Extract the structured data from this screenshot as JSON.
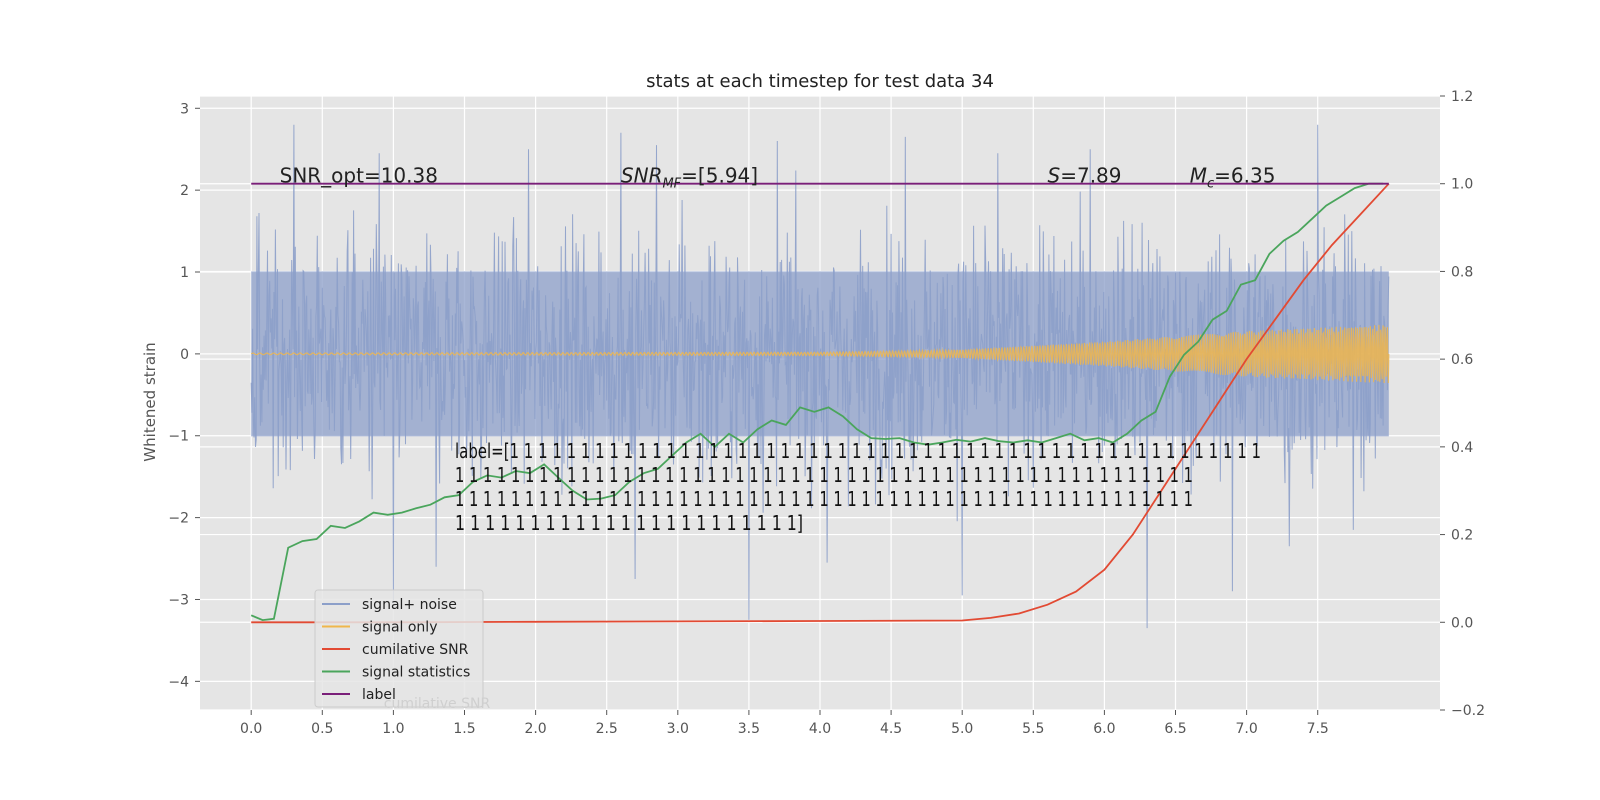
{
  "chart_data": {
    "type": "line",
    "title": "stats at each timestep for test data 34",
    "ylabel": "Whitened strain",
    "y2label": "",
    "xlim": [
      -0.36,
      8.36
    ],
    "ylim": [
      -4.35,
      3.15
    ],
    "y2lim": [
      -0.2,
      1.2
    ],
    "x_ticks": [
      0.0,
      0.5,
      1.0,
      1.5,
      2.0,
      2.5,
      3.0,
      3.5,
      4.0,
      4.5,
      5.0,
      5.5,
      6.0,
      6.5,
      7.0,
      7.5
    ],
    "x_tick_labels": [
      "0.0",
      "0.5",
      "1.0",
      "1.5",
      "2.0",
      "2.5",
      "3.0",
      "3.5",
      "4.0",
      "4.5",
      "5.0",
      "5.5",
      "6.0",
      "6.5",
      "7.0",
      "7.5"
    ],
    "y_ticks": [
      3,
      2,
      1,
      0,
      -1,
      -2,
      -3,
      -4
    ],
    "y_tick_labels": [
      "3",
      "2",
      "1",
      "0",
      "−1",
      "−2",
      "−3",
      "−4"
    ],
    "y2_ticks": [
      1.2,
      1.0,
      0.8,
      0.6,
      0.4,
      0.2,
      0.0,
      -0.2
    ],
    "y2_tick_labels": [
      "1.2",
      "1.0",
      "0.8",
      "0.6",
      "0.4",
      "0.2",
      "0.0",
      "−0.2"
    ],
    "grid": true,
    "legend_position": "lower-left",
    "series": [
      {
        "name": "signal+ noise",
        "axis": "left",
        "color": "#8c9fc9",
        "style": "noise band",
        "x_range": [
          0.0,
          8.0
        ],
        "typical_range": [
          -1.55,
          1.55
        ],
        "extreme_range": [
          -3.35,
          2.8
        ],
        "peaks": [
          [
            0.3,
            2.8
          ],
          [
            1.0,
            -3.05
          ],
          [
            2.6,
            2.7
          ],
          [
            3.5,
            -3.25
          ],
          [
            4.6,
            2.65
          ],
          [
            5.0,
            -2.95
          ],
          [
            6.3,
            -3.35
          ],
          [
            7.5,
            2.8
          ],
          [
            0.9,
            2.45
          ],
          [
            1.95,
            2.5
          ],
          [
            2.85,
            2.55
          ],
          [
            3.7,
            2.6
          ],
          [
            4.05,
            -2.55
          ],
          [
            5.25,
            2.45
          ],
          [
            5.9,
            2.5
          ],
          [
            6.9,
            -2.9
          ],
          [
            7.3,
            -2.35
          ],
          [
            7.75,
            -2.15
          ],
          [
            1.3,
            -2.6
          ],
          [
            2.7,
            -2.75
          ]
        ]
      },
      {
        "name": "signal only",
        "axis": "left",
        "color": "#f0b64c",
        "style": "chirp",
        "x_range": [
          0.0,
          8.0
        ],
        "amplitude": [
          [
            0.0,
            0.01
          ],
          [
            4.0,
            0.02
          ],
          [
            5.0,
            0.05
          ],
          [
            6.0,
            0.15
          ],
          [
            7.0,
            0.28
          ],
          [
            8.0,
            0.36
          ]
        ]
      },
      {
        "name": "cumilative SNR",
        "axis": "right",
        "color": "#e24a33",
        "x": [
          0.0,
          0.5,
          1.0,
          2.0,
          3.0,
          4.0,
          5.0,
          5.2,
          5.4,
          5.6,
          5.8,
          6.0,
          6.2,
          6.4,
          6.6,
          6.8,
          7.0,
          7.2,
          7.4,
          7.6,
          7.8,
          8.0
        ],
        "y": [
          0.0,
          0.0,
          0.0,
          0.001,
          0.002,
          0.003,
          0.004,
          0.01,
          0.02,
          0.04,
          0.07,
          0.12,
          0.2,
          0.3,
          0.4,
          0.5,
          0.6,
          0.69,
          0.78,
          0.86,
          0.93,
          1.0
        ]
      },
      {
        "name": "signal statistics",
        "axis": "right",
        "color": "#4aa55c",
        "x": [
          0.0,
          0.08,
          0.16,
          0.26,
          0.36,
          0.46,
          0.56,
          0.66,
          0.76,
          0.86,
          0.96,
          1.06,
          1.16,
          1.26,
          1.36,
          1.46,
          1.56,
          1.66,
          1.76,
          1.86,
          1.96,
          2.06,
          2.16,
          2.26,
          2.36,
          2.46,
          2.56,
          2.66,
          2.76,
          2.86,
          2.96,
          3.06,
          3.16,
          3.26,
          3.36,
          3.46,
          3.56,
          3.66,
          3.76,
          3.86,
          3.96,
          4.06,
          4.16,
          4.26,
          4.36,
          4.46,
          4.56,
          4.66,
          4.76,
          4.86,
          4.96,
          5.06,
          5.16,
          5.26,
          5.36,
          5.46,
          5.56,
          5.66,
          5.76,
          5.86,
          5.96,
          6.06,
          6.16,
          6.26,
          6.36,
          6.46,
          6.56,
          6.66,
          6.76,
          6.86,
          6.96,
          7.06,
          7.16,
          7.26,
          7.36,
          7.46,
          7.56,
          7.66,
          7.76,
          7.86,
          7.96
        ],
        "y": [
          0.016,
          0.005,
          0.008,
          0.17,
          0.185,
          0.19,
          0.22,
          0.215,
          0.23,
          0.25,
          0.245,
          0.25,
          0.26,
          0.268,
          0.285,
          0.29,
          0.32,
          0.335,
          0.33,
          0.345,
          0.34,
          0.36,
          0.33,
          0.3,
          0.28,
          0.282,
          0.29,
          0.32,
          0.34,
          0.35,
          0.38,
          0.41,
          0.43,
          0.4,
          0.43,
          0.41,
          0.44,
          0.46,
          0.45,
          0.49,
          0.48,
          0.49,
          0.47,
          0.44,
          0.42,
          0.418,
          0.42,
          0.41,
          0.405,
          0.41,
          0.416,
          0.412,
          0.42,
          0.413,
          0.41,
          0.415,
          0.41,
          0.42,
          0.43,
          0.415,
          0.42,
          0.41,
          0.43,
          0.46,
          0.48,
          0.56,
          0.61,
          0.64,
          0.69,
          0.71,
          0.77,
          0.78,
          0.84,
          0.87,
          0.89,
          0.92,
          0.95,
          0.97,
          0.99,
          1.0,
          1.0
        ]
      },
      {
        "name": "label",
        "axis": "right",
        "color": "#7a1f79",
        "x": [
          0.0,
          8.0
        ],
        "y": [
          1.0,
          1.0
        ]
      }
    ],
    "annotations": [
      {
        "text": "SNR_opt=10.38",
        "x": 0.2,
        "y": 1.0
      },
      {
        "text_italic": "SNR",
        "text_sub": "MF",
        "text": "=[5.94]",
        "x": 2.6,
        "y": 1.0
      },
      {
        "text_italic": "S",
        "text": "=7.89",
        "x": 5.6,
        "y": 1.0
      },
      {
        "text_italic": "M",
        "text_sub": "c",
        "text": "=6.35",
        "x": 6.6,
        "y": 1.0
      }
    ],
    "label_text_lines": [
      "label=[1 1 1 1 1 1 1 1 1 1 1 1 1 1 1 1 1 1 1 1 1 1 1 1 1 1 1 1 1 1 1 1 1 1 1 1 1 1 1 1 1 1 1 1 1 1 1 1 1 1 1 1 1",
      " 1 1 1 1 1 1 1 1 1 1 1 1 1 1 1 1 1 1 1 1 1 1 1 1 1 1 1 1 1 1 1 1 1 1 1 1 1 1 1 1 1 1 1 1 1 1 1 1 1 1 1 1 1",
      " 1 1 1 1 1 1 1 1 1 1 1 1 1 1 1 1 1 1 1 1 1 1 1 1 1 1 1 1 1 1 1 1 1 1 1 1 1 1 1 1 1 1 1 1 1 1 1 1 1 1 1 1 1",
      " 1 1 1 1 1 1 1 1 1 1 1 1 1 1 1 1 1 1 1 1 1 1 1]"
    ],
    "legend_entries": [
      "signal+ noise",
      "signal only",
      "cumilative SNR",
      "signal statistics",
      "label"
    ],
    "legend_ghost_text": "cumilative SNR"
  }
}
